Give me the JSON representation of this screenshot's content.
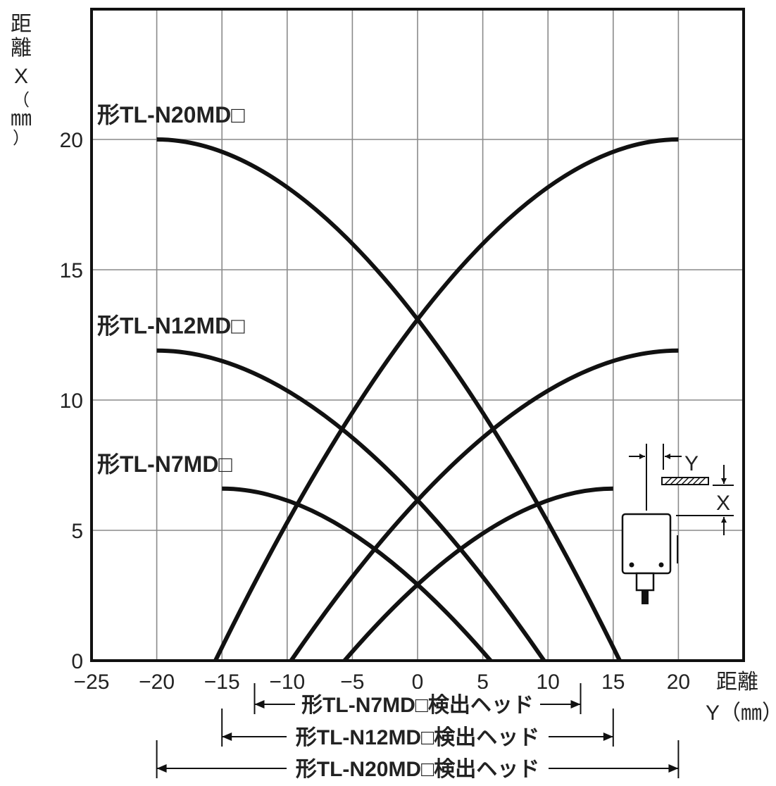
{
  "chart_data": {
    "type": "line",
    "y_axis_label_chars": [
      "距",
      "離",
      "X",
      "（",
      "㎜",
      "）"
    ],
    "x_axis_label": {
      "line1": "距離",
      "line2": "Y（㎜）"
    },
    "x_ticks": [
      -25,
      -20,
      -15,
      -10,
      -5,
      0,
      5,
      10,
      15,
      20
    ],
    "y_ticks": [
      0,
      5,
      10,
      15,
      20
    ],
    "xlim": [
      -25,
      25
    ],
    "ylim": [
      0,
      25
    ],
    "grid": true,
    "series": [
      {
        "name": "形TL-N20MD□",
        "x_range": [
          -20,
          20
        ],
        "curves": [
          {
            "from": [
              -20,
              20
            ],
            "to": [
              15.5,
              0
            ]
          },
          {
            "from": [
              -15.5,
              0
            ],
            "to": [
              20,
              20
            ]
          }
        ]
      },
      {
        "name": "形TL-N12MD□",
        "x_range": [
          -20,
          20
        ],
        "curves": [
          {
            "from": [
              -20,
              11.9
            ],
            "to": [
              9.7,
              0
            ]
          },
          {
            "from": [
              -9.7,
              0
            ],
            "to": [
              20,
              11.9
            ]
          }
        ]
      },
      {
        "name": "形TL-N7MD□",
        "x_range": [
          -15,
          15
        ],
        "curves": [
          {
            "from": [
              -15,
              6.6
            ],
            "to": [
              5.6,
              0
            ]
          },
          {
            "from": [
              -5.6,
              0
            ],
            "to": [
              15,
              6.6
            ]
          }
        ]
      }
    ],
    "head_widths": [
      {
        "label": "形TL-N7MD□検出ヘッド",
        "range": [
          -12.5,
          12.5
        ]
      },
      {
        "label": "形TL-N12MD□検出ヘッド",
        "range": [
          -15,
          15
        ]
      },
      {
        "label": "形TL-N20MD□検出ヘッド",
        "range": [
          -20,
          20
        ]
      }
    ],
    "inset_labels": {
      "y": "Y",
      "x": "X"
    }
  }
}
